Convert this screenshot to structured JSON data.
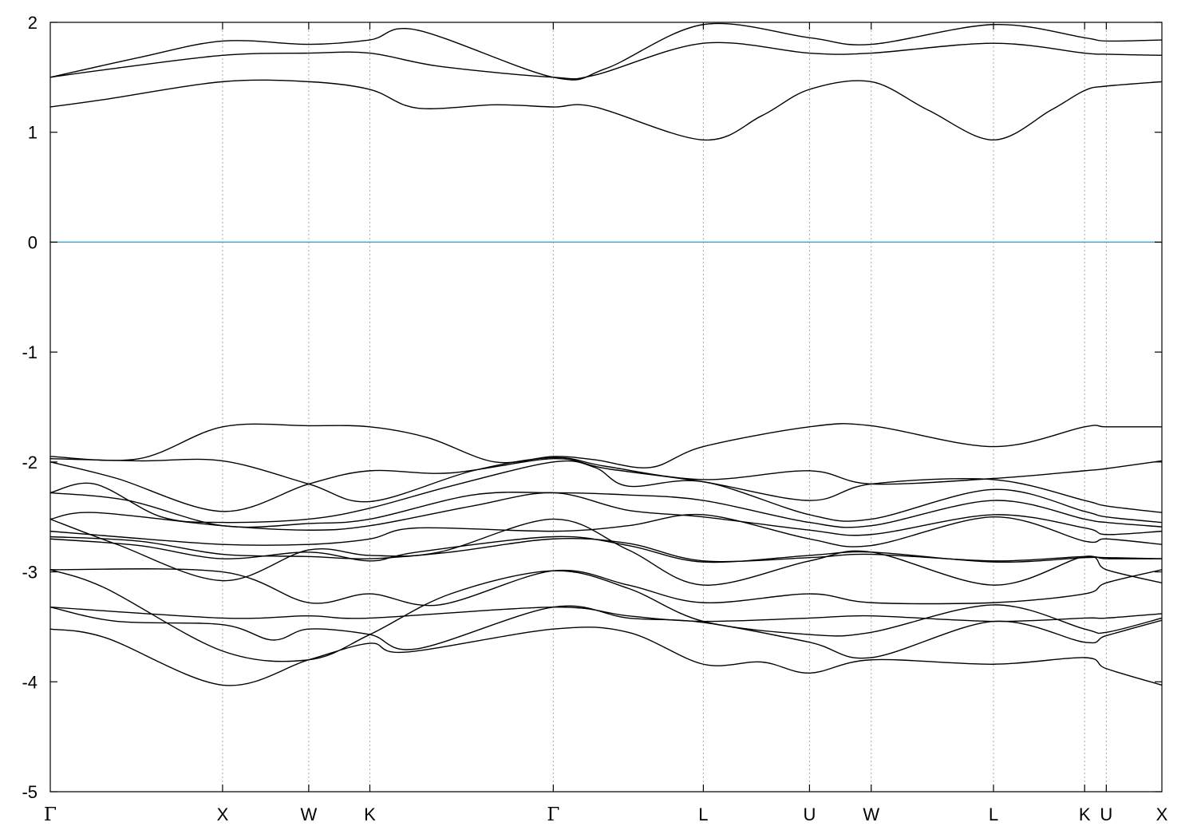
{
  "chart_data": {
    "type": "line",
    "title": "",
    "xlabel": "",
    "ylabel": "",
    "ylim": [
      -5,
      2
    ],
    "yticks": [
      "2",
      "1",
      "0",
      "-1",
      "-2",
      "-3",
      "-4",
      "-5"
    ],
    "x_range": [
      0,
      1
    ],
    "kpoints": [
      {
        "label": "Γ",
        "x": 0.0,
        "gamma": true
      },
      {
        "label": "X",
        "x": 0.155
      },
      {
        "label": "W",
        "x": 0.2325
      },
      {
        "label": "K",
        "x": 0.2875
      },
      {
        "label": "Γ",
        "x": 0.4525,
        "gamma": true
      },
      {
        "label": "L",
        "x": 0.5875
      },
      {
        "label": "U",
        "x": 0.683
      },
      {
        "label": "W",
        "x": 0.7385
      },
      {
        "label": "L",
        "x": 0.8485
      },
      {
        "label": "K",
        "x": 0.9305
      },
      {
        "label": "U",
        "x": 0.95
      },
      {
        "label": "X",
        "x": 1.0
      }
    ],
    "fermi_level": 0,
    "colors": {
      "bands": "#000000",
      "fermi": "#4aa3c0",
      "grid": "#aaaaaa",
      "axis": "#000000"
    },
    "series": [
      {
        "values": [
          [
            0,
            1.23
          ],
          [
            0.05,
            1.3
          ],
          [
            0.155,
            1.46
          ],
          [
            0.2325,
            1.46
          ],
          [
            0.2875,
            1.39
          ],
          [
            0.33,
            1.22
          ],
          [
            0.4,
            1.25
          ],
          [
            0.4525,
            1.23
          ],
          [
            0.49,
            1.23
          ],
          [
            0.5875,
            0.93
          ],
          [
            0.64,
            1.15
          ],
          [
            0.683,
            1.39
          ],
          [
            0.7385,
            1.46
          ],
          [
            0.79,
            1.2
          ],
          [
            0.8485,
            0.93
          ],
          [
            0.9,
            1.2
          ],
          [
            0.9305,
            1.38
          ],
          [
            0.95,
            1.42
          ],
          [
            1.0,
            1.46
          ]
        ]
      },
      {
        "values": [
          [
            0,
            1.5
          ],
          [
            0.05,
            1.57
          ],
          [
            0.155,
            1.7
          ],
          [
            0.2325,
            1.72
          ],
          [
            0.2875,
            1.72
          ],
          [
            0.35,
            1.6
          ],
          [
            0.4525,
            1.5
          ],
          [
            0.49,
            1.52
          ],
          [
            0.5875,
            1.81
          ],
          [
            0.683,
            1.72
          ],
          [
            0.7385,
            1.72
          ],
          [
            0.8485,
            1.81
          ],
          [
            0.9305,
            1.72
          ],
          [
            0.95,
            1.71
          ],
          [
            1.0,
            1.7
          ]
        ]
      },
      {
        "values": [
          [
            0,
            1.5
          ],
          [
            0.08,
            1.68
          ],
          [
            0.155,
            1.83
          ],
          [
            0.2325,
            1.8
          ],
          [
            0.2875,
            1.84
          ],
          [
            0.33,
            1.93
          ],
          [
            0.4525,
            1.5
          ],
          [
            0.5,
            1.58
          ],
          [
            0.5875,
            1.98
          ],
          [
            0.683,
            1.86
          ],
          [
            0.7385,
            1.8
          ],
          [
            0.8485,
            1.98
          ],
          [
            0.9305,
            1.86
          ],
          [
            0.95,
            1.83
          ],
          [
            1.0,
            1.84
          ]
        ]
      },
      {
        "values": [
          [
            0,
            -1.95
          ],
          [
            0.08,
            -1.97
          ],
          [
            0.155,
            -1.68
          ],
          [
            0.2325,
            -1.67
          ],
          [
            0.2875,
            -1.68
          ],
          [
            0.34,
            -1.78
          ],
          [
            0.4,
            -2.0
          ],
          [
            0.4525,
            -1.95
          ],
          [
            0.49,
            -1.98
          ],
          [
            0.54,
            -2.05
          ],
          [
            0.5875,
            -1.86
          ],
          [
            0.683,
            -1.68
          ],
          [
            0.7385,
            -1.67
          ],
          [
            0.8485,
            -1.86
          ],
          [
            0.9305,
            -1.68
          ],
          [
            0.95,
            -1.68
          ],
          [
            1.0,
            -1.68
          ]
        ]
      },
      {
        "values": [
          [
            0,
            -1.97
          ],
          [
            0.08,
            -1.99
          ],
          [
            0.155,
            -1.99
          ],
          [
            0.2325,
            -2.2
          ],
          [
            0.2875,
            -2.36
          ],
          [
            0.38,
            -2.08
          ],
          [
            0.4525,
            -1.96
          ],
          [
            0.5,
            -2.04
          ],
          [
            0.5875,
            -2.16
          ],
          [
            0.683,
            -2.08
          ],
          [
            0.7385,
            -2.2
          ],
          [
            0.8485,
            -2.15
          ],
          [
            0.9305,
            -2.08
          ],
          [
            0.95,
            -2.06
          ],
          [
            1.0,
            -1.99
          ]
        ]
      },
      {
        "values": [
          [
            0,
            -2.0
          ],
          [
            0.06,
            -2.15
          ],
          [
            0.155,
            -2.45
          ],
          [
            0.2325,
            -2.2
          ],
          [
            0.2875,
            -2.08
          ],
          [
            0.36,
            -2.1
          ],
          [
            0.4525,
            -1.97
          ],
          [
            0.5,
            -2.06
          ],
          [
            0.5875,
            -2.18
          ],
          [
            0.683,
            -2.35
          ],
          [
            0.7385,
            -2.2
          ],
          [
            0.8485,
            -2.16
          ],
          [
            0.9305,
            -2.35
          ],
          [
            0.95,
            -2.4
          ],
          [
            1.0,
            -2.46
          ]
        ]
      },
      {
        "values": [
          [
            0,
            -2.28
          ],
          [
            0.04,
            -2.2
          ],
          [
            0.1,
            -2.5
          ],
          [
            0.155,
            -2.55
          ],
          [
            0.2325,
            -2.52
          ],
          [
            0.2875,
            -2.42
          ],
          [
            0.36,
            -2.22
          ],
          [
            0.4525,
            -2.0
          ],
          [
            0.49,
            -2.05
          ],
          [
            0.52,
            -2.22
          ],
          [
            0.5875,
            -2.18
          ],
          [
            0.683,
            -2.48
          ],
          [
            0.7385,
            -2.52
          ],
          [
            0.8485,
            -2.25
          ],
          [
            0.9305,
            -2.45
          ],
          [
            0.95,
            -2.5
          ],
          [
            1.0,
            -2.55
          ]
        ]
      },
      {
        "values": [
          [
            0,
            -2.28
          ],
          [
            0.07,
            -2.35
          ],
          [
            0.155,
            -2.58
          ],
          [
            0.2325,
            -2.56
          ],
          [
            0.2875,
            -2.52
          ],
          [
            0.38,
            -2.3
          ],
          [
            0.4525,
            -2.28
          ],
          [
            0.52,
            -2.3
          ],
          [
            0.5875,
            -2.35
          ],
          [
            0.683,
            -2.55
          ],
          [
            0.7385,
            -2.58
          ],
          [
            0.8485,
            -2.35
          ],
          [
            0.9305,
            -2.52
          ],
          [
            0.95,
            -2.55
          ],
          [
            1.0,
            -2.59
          ]
        ]
      },
      {
        "values": [
          [
            0,
            -2.52
          ],
          [
            0.04,
            -2.46
          ],
          [
            0.155,
            -2.58
          ],
          [
            0.2325,
            -2.62
          ],
          [
            0.2875,
            -2.58
          ],
          [
            0.38,
            -2.4
          ],
          [
            0.4525,
            -2.28
          ],
          [
            0.52,
            -2.44
          ],
          [
            0.5875,
            -2.5
          ],
          [
            0.683,
            -2.62
          ],
          [
            0.7385,
            -2.66
          ],
          [
            0.8485,
            -2.48
          ],
          [
            0.9305,
            -2.6
          ],
          [
            0.95,
            -2.66
          ],
          [
            1.0,
            -2.63
          ]
        ]
      },
      {
        "values": [
          [
            0,
            -2.63
          ],
          [
            0.06,
            -2.68
          ],
          [
            0.155,
            -2.75
          ],
          [
            0.2325,
            -2.75
          ],
          [
            0.2875,
            -2.7
          ],
          [
            0.33,
            -2.6
          ],
          [
            0.4525,
            -2.63
          ],
          [
            0.52,
            -2.58
          ],
          [
            0.5875,
            -2.48
          ],
          [
            0.683,
            -2.7
          ],
          [
            0.7385,
            -2.76
          ],
          [
            0.8485,
            -2.5
          ],
          [
            0.9305,
            -2.72
          ],
          [
            0.95,
            -2.7
          ],
          [
            1.0,
            -2.75
          ]
        ]
      },
      {
        "values": [
          [
            0,
            -2.52
          ],
          [
            0.06,
            -2.75
          ],
          [
            0.155,
            -3.08
          ],
          [
            0.2325,
            -2.8
          ],
          [
            0.2875,
            -2.85
          ],
          [
            0.35,
            -2.82
          ],
          [
            0.4525,
            -2.52
          ],
          [
            0.52,
            -2.8
          ],
          [
            0.5875,
            -3.12
          ],
          [
            0.683,
            -2.9
          ],
          [
            0.7385,
            -2.82
          ],
          [
            0.8485,
            -3.12
          ],
          [
            0.9305,
            -2.86
          ],
          [
            0.95,
            -2.98
          ],
          [
            1.0,
            -3.1
          ]
        ]
      },
      {
        "values": [
          [
            0,
            -2.68
          ],
          [
            0.08,
            -2.72
          ],
          [
            0.155,
            -2.84
          ],
          [
            0.2325,
            -2.86
          ],
          [
            0.2875,
            -2.88
          ],
          [
            0.36,
            -2.82
          ],
          [
            0.4525,
            -2.7
          ],
          [
            0.52,
            -2.74
          ],
          [
            0.5875,
            -2.9
          ],
          [
            0.683,
            -2.87
          ],
          [
            0.7385,
            -2.84
          ],
          [
            0.8485,
            -2.9
          ],
          [
            0.9305,
            -2.86
          ],
          [
            0.95,
            -2.88
          ],
          [
            1.0,
            -2.88
          ]
        ]
      },
      {
        "values": [
          [
            0,
            -2.7
          ],
          [
            0.08,
            -2.76
          ],
          [
            0.155,
            -2.88
          ],
          [
            0.2325,
            -2.82
          ],
          [
            0.2875,
            -2.9
          ],
          [
            0.33,
            -2.82
          ],
          [
            0.4525,
            -2.68
          ],
          [
            0.52,
            -2.76
          ],
          [
            0.5875,
            -2.91
          ],
          [
            0.683,
            -2.85
          ],
          [
            0.7385,
            -2.82
          ],
          [
            0.8485,
            -2.91
          ],
          [
            0.9305,
            -2.87
          ],
          [
            0.95,
            -2.87
          ],
          [
            1.0,
            -2.88
          ]
        ]
      },
      {
        "values": [
          [
            0,
            -2.98
          ],
          [
            0.155,
            -3.0
          ],
          [
            0.2325,
            -3.28
          ],
          [
            0.2875,
            -3.2
          ],
          [
            0.35,
            -3.3
          ],
          [
            0.4525,
            -2.99
          ],
          [
            0.52,
            -3.12
          ],
          [
            0.5875,
            -3.28
          ],
          [
            0.683,
            -3.2
          ],
          [
            0.7385,
            -3.28
          ],
          [
            0.8485,
            -3.28
          ],
          [
            0.9305,
            -3.2
          ],
          [
            0.95,
            -3.1
          ],
          [
            1.0,
            -2.98
          ]
        ]
      },
      {
        "values": [
          [
            0,
            -2.98
          ],
          [
            0.05,
            -3.15
          ],
          [
            0.155,
            -3.72
          ],
          [
            0.2325,
            -3.8
          ],
          [
            0.2875,
            -3.57
          ],
          [
            0.36,
            -3.2
          ],
          [
            0.4525,
            -2.99
          ],
          [
            0.52,
            -3.15
          ],
          [
            0.5875,
            -3.45
          ],
          [
            0.683,
            -3.57
          ],
          [
            0.7385,
            -3.55
          ],
          [
            0.8485,
            -3.3
          ],
          [
            0.9305,
            -3.52
          ],
          [
            0.95,
            -3.55
          ],
          [
            1.0,
            -3.42
          ]
        ]
      },
      {
        "values": [
          [
            0,
            -3.32
          ],
          [
            0.155,
            -3.42
          ],
          [
            0.2325,
            -3.4
          ],
          [
            0.2875,
            -3.42
          ],
          [
            0.4525,
            -3.32
          ],
          [
            0.52,
            -3.4
          ],
          [
            0.5875,
            -3.45
          ],
          [
            0.683,
            -3.42
          ],
          [
            0.7385,
            -3.4
          ],
          [
            0.8485,
            -3.45
          ],
          [
            0.9305,
            -3.42
          ],
          [
            0.95,
            -3.42
          ],
          [
            1.0,
            -3.38
          ]
        ]
      },
      {
        "values": [
          [
            0,
            -3.32
          ],
          [
            0.06,
            -3.45
          ],
          [
            0.155,
            -3.48
          ],
          [
            0.2,
            -3.62
          ],
          [
            0.2325,
            -3.52
          ],
          [
            0.2875,
            -3.57
          ],
          [
            0.33,
            -3.7
          ],
          [
            0.4525,
            -3.32
          ],
          [
            0.52,
            -3.42
          ],
          [
            0.5875,
            -3.46
          ],
          [
            0.683,
            -3.64
          ],
          [
            0.7385,
            -3.78
          ],
          [
            0.8485,
            -3.45
          ],
          [
            0.9305,
            -3.64
          ],
          [
            0.95,
            -3.58
          ],
          [
            1.0,
            -3.44
          ]
        ]
      },
      {
        "values": [
          [
            0,
            -3.52
          ],
          [
            0.05,
            -3.6
          ],
          [
            0.155,
            -4.03
          ],
          [
            0.2325,
            -3.8
          ],
          [
            0.2875,
            -3.65
          ],
          [
            0.32,
            -3.73
          ],
          [
            0.4525,
            -3.52
          ],
          [
            0.52,
            -3.55
          ],
          [
            0.5875,
            -3.84
          ],
          [
            0.64,
            -3.82
          ],
          [
            0.683,
            -3.92
          ],
          [
            0.7385,
            -3.8
          ],
          [
            0.8485,
            -3.84
          ],
          [
            0.9305,
            -3.78
          ],
          [
            0.95,
            -3.88
          ],
          [
            1.0,
            -4.03
          ]
        ]
      }
    ]
  }
}
